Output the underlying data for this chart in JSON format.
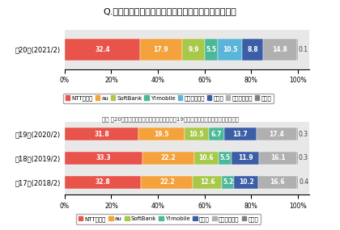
{
  "title": "Q.今後利用したいと思う携帯電話会社はどこですか？",
  "note": "注） 第20回から「楽天モバイル」を追加。第19回以前は参考値として下記に掲載。",
  "top_chart": {
    "rows": [
      "第20回(2021/2)"
    ],
    "segments": [
      {
        "label": "NTTドコモ",
        "values": [
          32.4
        ],
        "color": "#e8534a"
      },
      {
        "label": "au",
        "values": [
          17.9
        ],
        "color": "#f4a23c"
      },
      {
        "label": "SoftBank",
        "values": [
          9.9
        ],
        "color": "#a8c84a"
      },
      {
        "label": "Y!mobile",
        "values": [
          5.5
        ],
        "color": "#4cb89a"
      },
      {
        "label": "楽天モバイル",
        "values": [
          10.5
        ],
        "color": "#5ab5d8"
      },
      {
        "label": "その他",
        "values": [
          8.8
        ],
        "color": "#3b5ea6"
      },
      {
        "label": "いずれもない",
        "values": [
          14.8
        ],
        "color": "#b0b0b0"
      },
      {
        "label": "無回答",
        "values": [
          0.1
        ],
        "color": "#808080"
      }
    ],
    "legend_labels": [
      "NTTドコモ",
      "au",
      "SoftBank",
      "Y!mobile",
      "楽天モバイル",
      "その他",
      "いずれもない",
      "無回答"
    ]
  },
  "bottom_chart": {
    "rows": [
      "第19回(2020/2)",
      "第18回(2019/2)",
      "第17回(2018/2)"
    ],
    "segments": [
      {
        "label": "NTTドコモ",
        "values": [
          31.8,
          33.3,
          32.8
        ],
        "color": "#e8534a"
      },
      {
        "label": "au",
        "values": [
          19.5,
          22.2,
          22.2
        ],
        "color": "#f4a23c"
      },
      {
        "label": "SoftBank",
        "values": [
          10.5,
          10.6,
          12.6
        ],
        "color": "#a8c84a"
      },
      {
        "label": "Y!mobile",
        "values": [
          6.7,
          5.5,
          5.2
        ],
        "color": "#4cb89a"
      },
      {
        "label": "その他",
        "values": [
          13.7,
          11.9,
          10.2
        ],
        "color": "#3b5ea6"
      },
      {
        "label": "いずれもない",
        "values": [
          17.4,
          16.1,
          16.6
        ],
        "color": "#b0b0b0"
      },
      {
        "label": "無回答",
        "values": [
          0.3,
          0.3,
          0.4
        ],
        "color": "#808080"
      }
    ],
    "legend_labels": [
      "NTTドコモ",
      "au",
      "SoftBank",
      "Y!mobile",
      "その他",
      "いずれもない",
      "無回答"
    ]
  },
  "bg_color": "#ffffff",
  "bar_bg_color": "#e8e8e8",
  "title_fontsize": 8.0,
  "label_fontsize": 5.5,
  "tick_fontsize": 5.5,
  "legend_fontsize": 5.0,
  "note_fontsize": 5.0,
  "row_label_fontsize": 6.0
}
